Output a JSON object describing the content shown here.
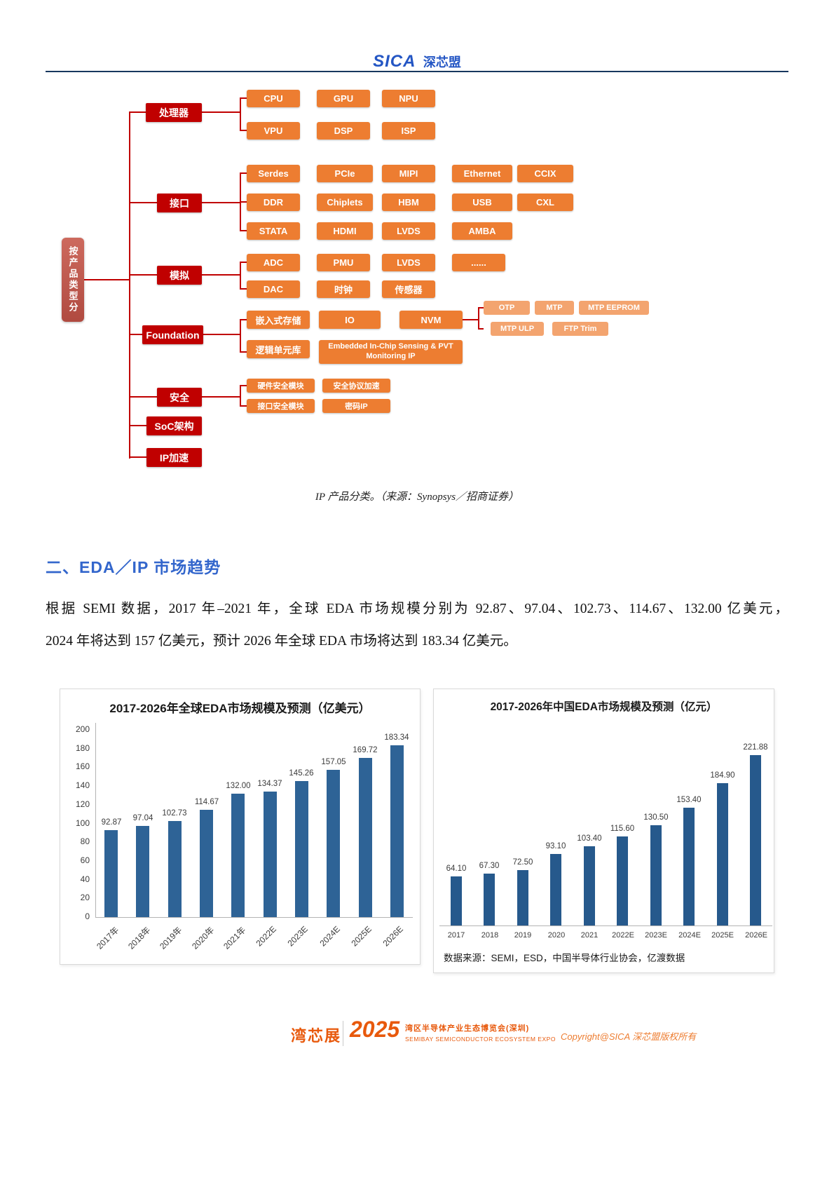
{
  "colors": {
    "logo_blue": "#2456c4",
    "heading_blue": "#3366cc",
    "category_red": "#c00000",
    "node_orange": "#ed7d31",
    "node_orange_light": "#f3a46f",
    "root_brick": "#c0584e",
    "rule_navy": "#17375e",
    "footer_orange": "#e8590c",
    "bar_blue_global": "#2e6396",
    "bar_blue_china": "#26598c"
  },
  "header": {
    "logo_sica": "SICA",
    "logo_cn": "深芯盟"
  },
  "diagram": {
    "root": "按产品类型分",
    "caption": "IP 产品分类。（来源：Synopsys／招商证券）",
    "categories": {
      "processor": {
        "label": "处理器",
        "rows": [
          [
            "CPU",
            "GPU",
            "NPU"
          ],
          [
            "VPU",
            "DSP",
            "ISP"
          ]
        ]
      },
      "interface": {
        "label": "接口",
        "rows": [
          [
            "Serdes",
            "PCIe",
            "MIPI",
            "Ethernet",
            "CCIX"
          ],
          [
            "DDR",
            "Chiplets",
            "HBM",
            "USB",
            "CXL"
          ],
          [
            "STATA",
            "HDMI",
            "LVDS",
            "AMBA"
          ]
        ]
      },
      "analog": {
        "label": "模拟",
        "rows": [
          [
            "ADC",
            "PMU",
            "LVDS",
            "......"
          ],
          [
            "DAC",
            "时钟",
            "传感器"
          ]
        ]
      },
      "foundation": {
        "label": "Foundation",
        "row1": [
          "嵌入式存储",
          "IO",
          "NVM"
        ],
        "row2": [
          "逻辑单元库",
          "Embedded In-Chip Sensing & PVT Monitoring IP"
        ],
        "sub_rows": [
          [
            "OTP",
            "MTP",
            "MTP EEPROM"
          ],
          [
            "MTP ULP",
            "FTP Trim"
          ]
        ]
      },
      "security": {
        "label": "安全",
        "rows": [
          [
            "硬件安全模块",
            "安全协议加速"
          ],
          [
            "接口安全模块",
            "密码IP"
          ]
        ]
      },
      "soc": {
        "label": "SoC架构"
      },
      "ip_accel": {
        "label": "IP加速"
      }
    }
  },
  "section": {
    "title": "二、EDA／IP 市场趋势"
  },
  "paragraph": {
    "line1": "根据 SEMI 数据，2017 年–2021 年，全球 EDA 市场规模分别为 92.87、97.04、102.73、114.67、132.00 亿美元，",
    "line2": "2024 年将达到 157 亿美元，预计 2026 年全球 EDA 市场将达到 183.34 亿美元。"
  },
  "chart_data": [
    {
      "type": "bar",
      "title": "2017-2026年全球EDA市场规模及预测（亿美元）",
      "categories": [
        "2017年",
        "2018年",
        "2019年",
        "2020年",
        "2021年",
        "2022E",
        "2023E",
        "2024E",
        "2025E",
        "2026E"
      ],
      "values": [
        92.87,
        97.04,
        102.73,
        114.67,
        132.0,
        134.37,
        145.26,
        157.05,
        169.72,
        183.34
      ],
      "value_labels": [
        "92.87",
        "97.04",
        "102.73",
        "114.67",
        "132.00",
        "134.37",
        "145.26",
        "157.05",
        "169.72",
        "183.34"
      ],
      "ylim": [
        0,
        200
      ],
      "ytick_step": 20,
      "grid": false,
      "legend": false,
      "xlabel": "",
      "ylabel": "",
      "bar_color": "#2e6396"
    },
    {
      "type": "bar",
      "title": "2017-2026年中国EDA市场规模及预测（亿元）",
      "categories": [
        "2017",
        "2018",
        "2019",
        "2020",
        "2021",
        "2022E",
        "2023E",
        "2024E",
        "2025E",
        "2026E"
      ],
      "values": [
        64.1,
        67.3,
        72.5,
        93.1,
        103.4,
        115.6,
        130.5,
        153.4,
        184.9,
        221.88
      ],
      "value_labels": [
        "64.10",
        "67.30",
        "72.50",
        "93.10",
        "103.40",
        "115.60",
        "130.50",
        "153.40",
        "184.90",
        "221.88"
      ],
      "grid": false,
      "legend": false,
      "xlabel": "",
      "ylabel": "",
      "bar_color": "#26598c"
    }
  ],
  "source_note": "数据来源：SEMI，ESD，中国半导体行业协会，亿渡数据",
  "footer": {
    "brand": "湾芯展",
    "year": "2025",
    "expo_cn": "湾区半导体产业生态博览会(深圳)",
    "expo_en": "SEMIBAY SEMICONDUCTOR ECOSYSTEM EXPO",
    "copyright": "Copyright@SICA 深芯盟版权所有"
  }
}
